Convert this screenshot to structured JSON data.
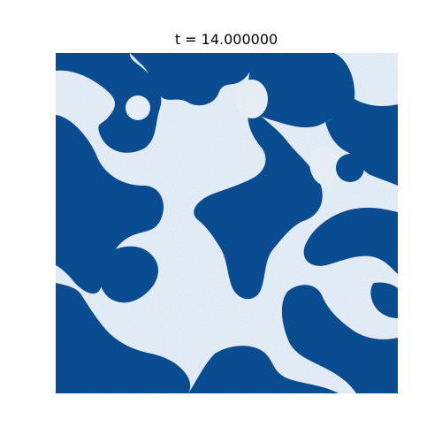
{
  "figure": {
    "title": "t = 14.000000"
  },
  "colors": {
    "light_phase": "#eef6fd",
    "dark_phase": "#0a4f96",
    "dark_phase_edge": "#1a66ad"
  }
}
